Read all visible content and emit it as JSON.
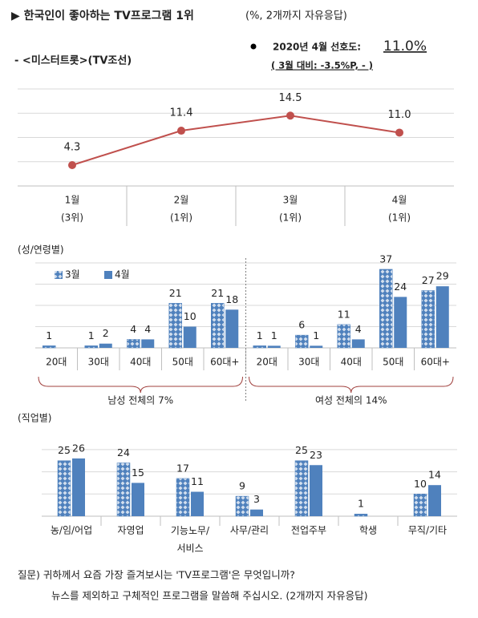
{
  "header": {
    "title": "▶ 한국인이 좋아하는 TV프로그램 1위",
    "title_note": "(%, 2개까지 자유응답)",
    "program": "- <미스터트롯>(TV조선)",
    "summary_label": "2020년 4월 선호도:",
    "summary_value": "11.0%",
    "change": "( 3월 대비: -3.5%P,   -   )"
  },
  "chart_data": [
    {
      "type": "line",
      "categories": [
        "1월",
        "2월",
        "3월",
        "4월"
      ],
      "ranks": [
        "(3위)",
        "(1위)",
        "(1위)",
        "(1위)"
      ],
      "values": [
        4.3,
        11.4,
        14.5,
        11.0
      ],
      "value_labels": [
        "4.3",
        "11.4",
        "14.5",
        "11.0"
      ],
      "color": "#c0504d",
      "ylim": [
        0,
        20
      ],
      "yticks": [
        0,
        5,
        10,
        15,
        20
      ],
      "grid": true
    },
    {
      "type": "bar",
      "title": "(성/연령별)",
      "groups": [
        {
          "label": "남성 전체의 7%",
          "categories": [
            "20대",
            "30대",
            "40대",
            "50대",
            "60대+"
          ]
        },
        {
          "label": "여성 전체의 14%",
          "categories": [
            "20대",
            "30대",
            "40대",
            "50대",
            "60대+"
          ]
        }
      ],
      "series": [
        {
          "name": "3월",
          "color": "#4f81bd",
          "pattern": "dots",
          "values": [
            1,
            1,
            4,
            21,
            21,
            1,
            6,
            11,
            37,
            27
          ]
        },
        {
          "name": "4월",
          "color": "#4f81bd",
          "values": [
            null,
            2,
            4,
            10,
            18,
            1,
            1,
            4,
            24,
            29
          ]
        }
      ],
      "ylim": [
        0,
        40
      ],
      "yticks": [
        0,
        10,
        20,
        30,
        40
      ],
      "grid": true,
      "legend": "top-left"
    },
    {
      "type": "bar",
      "title": "(직업별)",
      "categories": [
        "농/임/어업",
        "자영업",
        "기능노무/\n서비스",
        "사무/관리",
        "전업주부",
        "학생",
        "무직/기타"
      ],
      "series": [
        {
          "color": "#4f81bd",
          "pattern": "dots",
          "values": [
            25,
            24,
            17,
            9,
            25,
            1,
            10
          ]
        },
        {
          "color": "#4f81bd",
          "values": [
            26,
            15,
            11,
            3,
            23,
            null,
            14
          ]
        }
      ],
      "ylim": [
        0,
        35
      ],
      "yticks": [
        0,
        10,
        20,
        30
      ],
      "grid": true
    }
  ],
  "footer": {
    "question": "질문) 귀하께서 요즘 가장 즐겨보시는 'TV프로그램'은 무엇입니까?",
    "instruction": "뉴스를 제외하고 구체적인 프로그램을 말씀해 주십시오. (2개까지 자유응답)"
  }
}
